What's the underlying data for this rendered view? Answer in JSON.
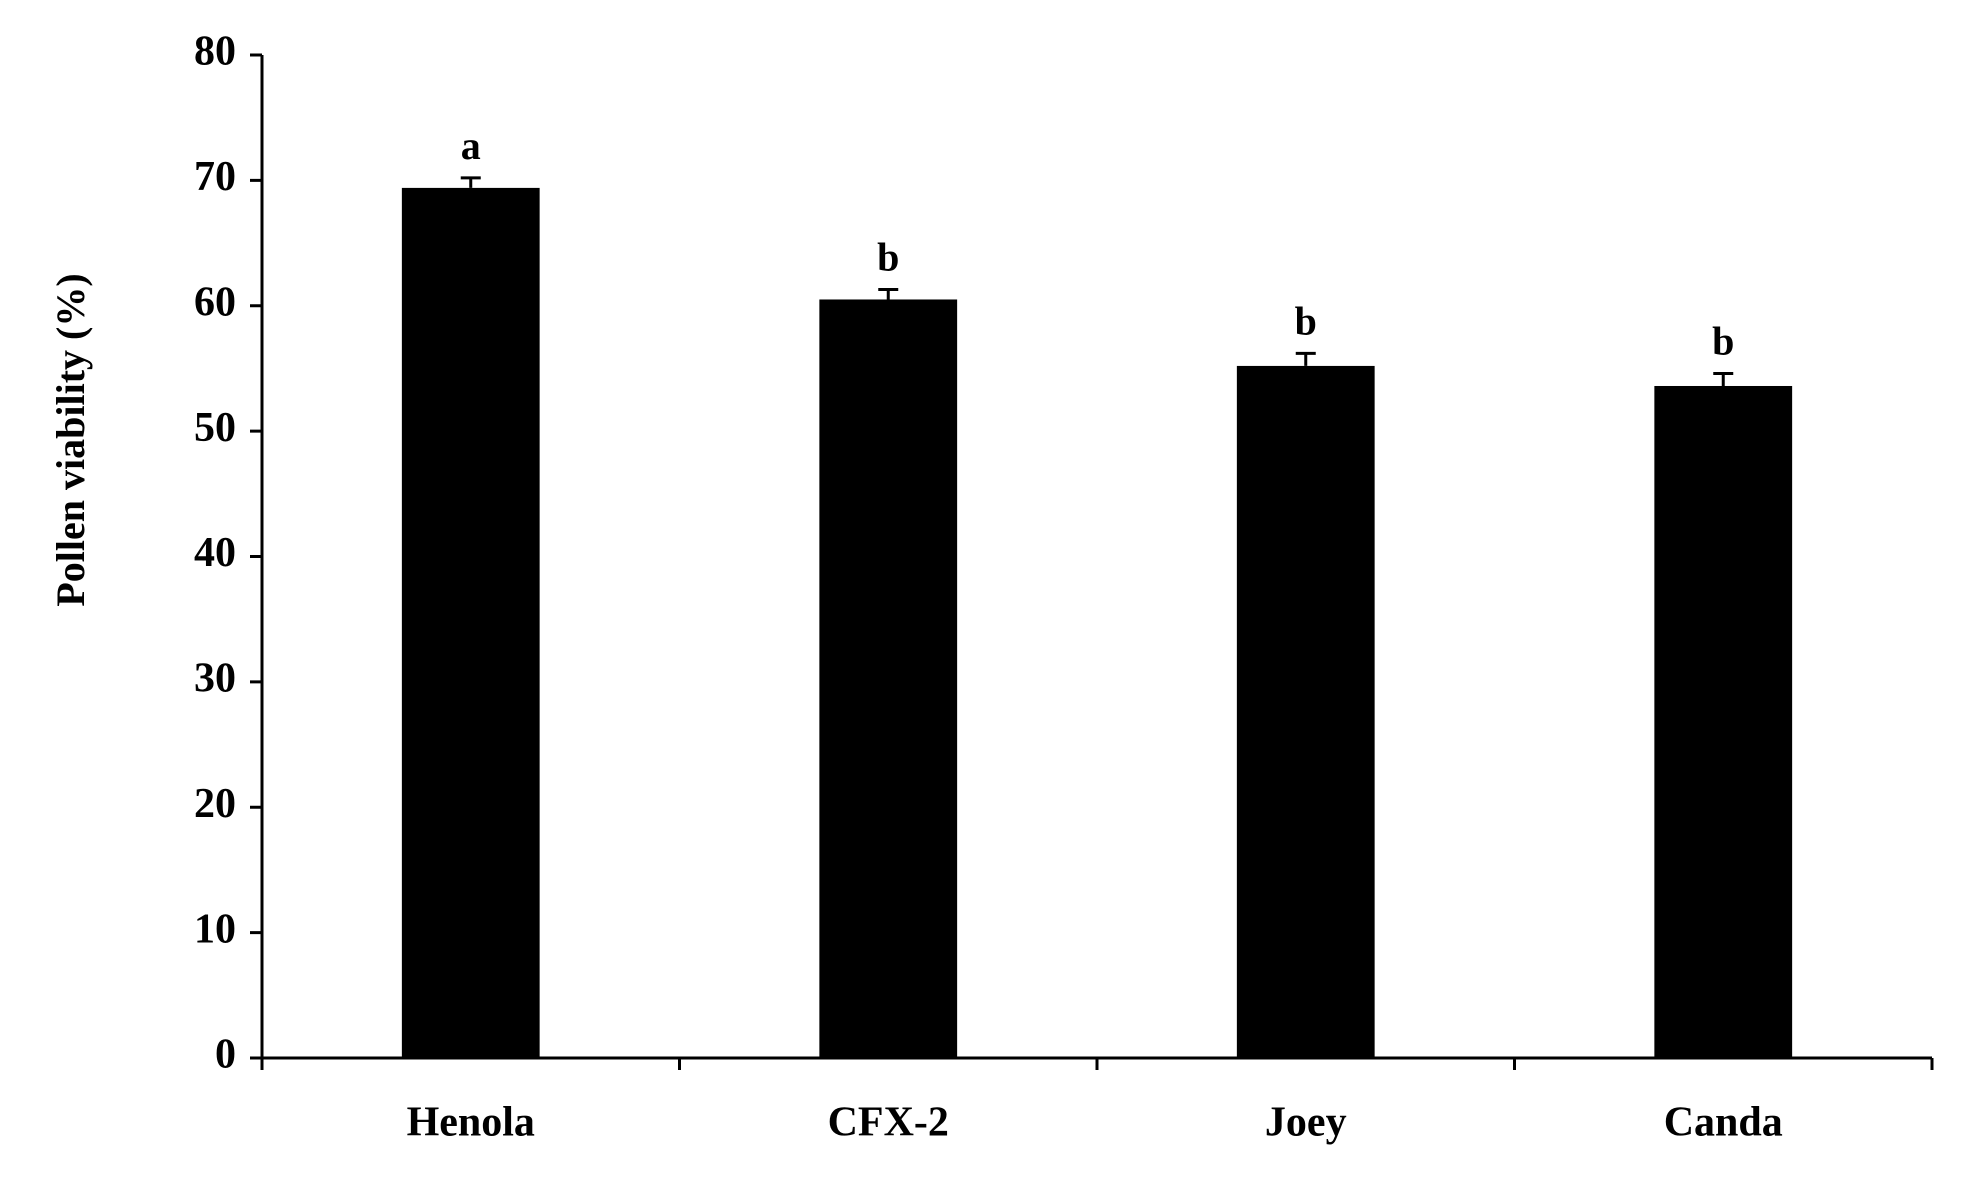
{
  "chart_data": {
    "type": "bar",
    "y_label": "Pollen viability (%)",
    "categories": [
      "Henola",
      "CFX-2",
      "Joey",
      "Canda"
    ],
    "values": [
      69.4,
      60.5,
      55.2,
      53.6
    ],
    "errors": [
      0.8,
      0.8,
      1.0,
      1.0
    ],
    "annotations": [
      "a",
      "b",
      "b",
      "b"
    ],
    "color": "#000000",
    "ylim": [
      0,
      80
    ],
    "yticks": [
      0,
      10,
      20,
      30,
      40,
      50,
      60,
      70,
      80
    ],
    "grid": false
  }
}
